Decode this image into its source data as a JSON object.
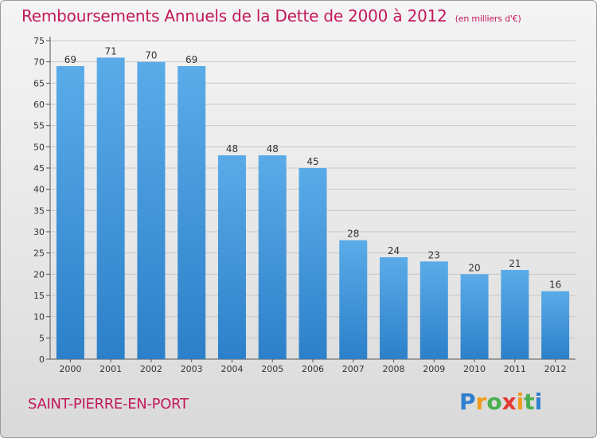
{
  "title": "Remboursements Annuels de la Dette de 2000 à 2012",
  "unit": "(en milliers d'€)",
  "town": "SAINT-PIERRE-EN-PORT",
  "brand": "Proxiti",
  "colors": {
    "title": "#c2185b",
    "bar_top": "#5aabe8",
    "bar_bottom": "#2c80c9",
    "grid": "#c8c8c8"
  },
  "chart_data": {
    "type": "bar",
    "title": "Remboursements Annuels de la Dette de 2000 à 2012",
    "xlabel": "",
    "ylabel": "",
    "categories": [
      "2000",
      "2001",
      "2002",
      "2003",
      "2004",
      "2005",
      "2006",
      "2007",
      "2008",
      "2009",
      "2010",
      "2011",
      "2012"
    ],
    "values": [
      69,
      71,
      70,
      69,
      48,
      48,
      45,
      28,
      24,
      23,
      20,
      21,
      16
    ],
    "ylim": [
      0,
      75
    ],
    "yticks": [
      0,
      5,
      10,
      15,
      20,
      25,
      30,
      35,
      40,
      45,
      50,
      55,
      60,
      65,
      70,
      75
    ],
    "grid": true,
    "data_labels": true
  }
}
